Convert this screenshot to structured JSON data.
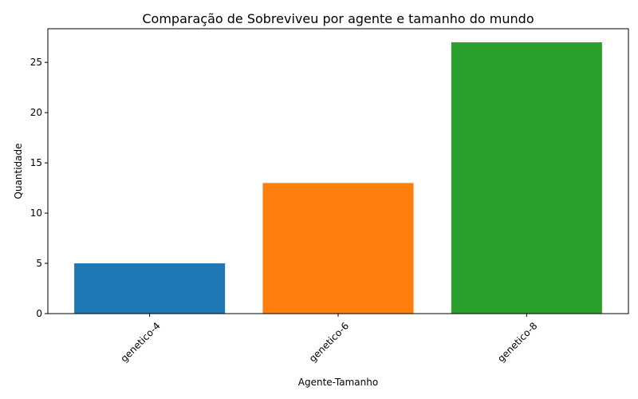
{
  "chart_data": {
    "type": "bar",
    "title": "Comparação de Sobreviveu por agente e tamanho do mundo",
    "xlabel": "Agente-Tamanho",
    "ylabel": "Quantidade",
    "categories": [
      "genetico-4",
      "genetico-6",
      "genetico-8"
    ],
    "values": [
      5,
      13,
      27
    ],
    "colors": [
      "#1f77b4",
      "#ff7f0e",
      "#2ca02c"
    ],
    "ylim": [
      0,
      28.35
    ],
    "yticks": [
      0,
      5,
      10,
      15,
      20,
      25
    ],
    "grid": false,
    "legend": "none"
  }
}
